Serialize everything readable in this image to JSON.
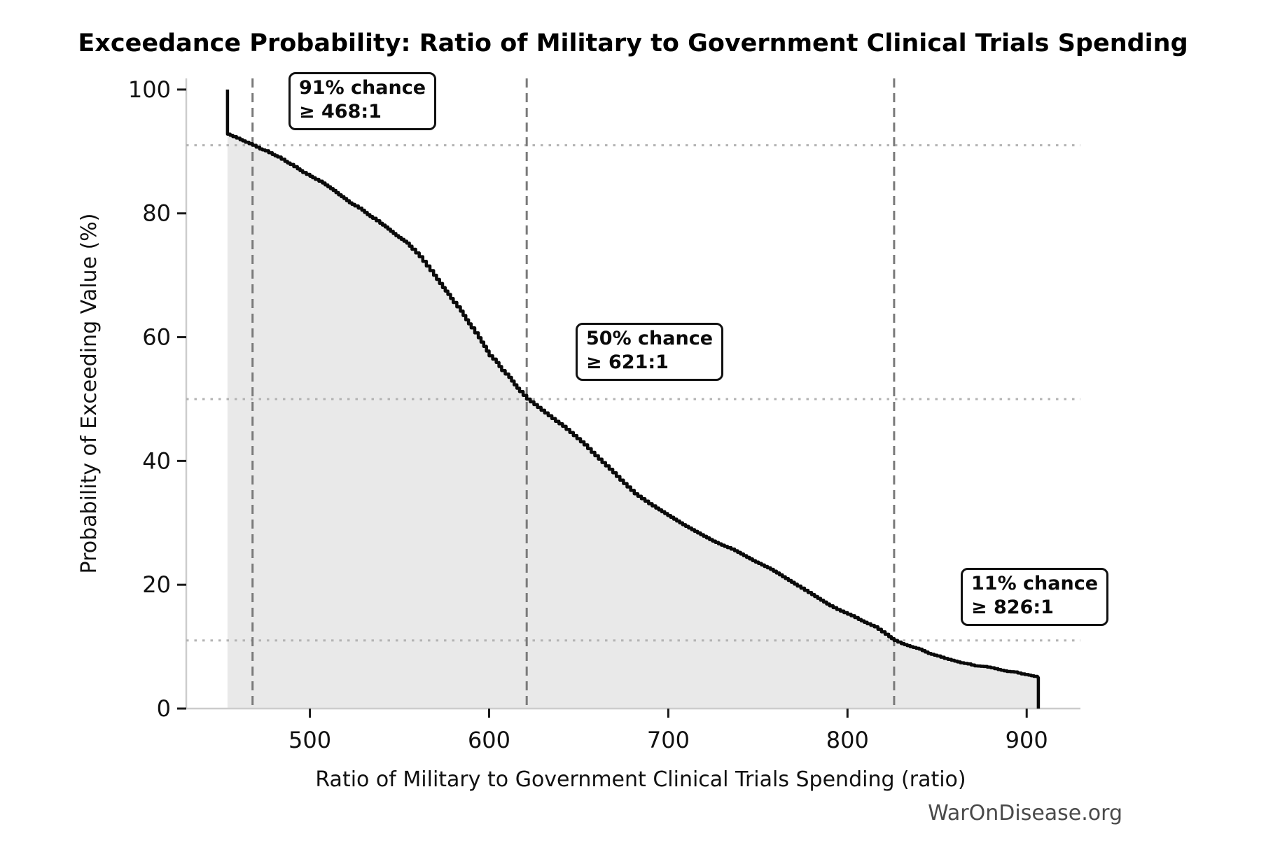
{
  "watermark": "WarOnDisease.org",
  "chart_data": {
    "type": "line",
    "title": "Exceedance Probability: Ratio of Military to Government Clinical Trials Spending",
    "xlabel": "Ratio of Military to Government Clinical Trials Spending (ratio)",
    "ylabel": "Probability of Exceeding Value (%)",
    "xlim": [
      431,
      930
    ],
    "ylim": [
      0,
      101.8
    ],
    "x_ticks": [
      500,
      600,
      700,
      800,
      900
    ],
    "y_ticks": [
      0,
      20,
      40,
      60,
      80,
      100
    ],
    "grid": false,
    "legend_position": "none",
    "fill_under_curve": true,
    "reference_lines": {
      "vertical_dashed_x": [
        468,
        621,
        826
      ],
      "horizontal_dotted_y": [
        91,
        50,
        11
      ]
    },
    "annotations": [
      {
        "label_line1": "91% chance",
        "label_line2": "≥ 468:1",
        "chance_pct": 91,
        "threshold_ratio": 468
      },
      {
        "label_line1": "50% chance",
        "label_line2": "≥ 621:1",
        "chance_pct": 50,
        "threshold_ratio": 621
      },
      {
        "label_line1": "11% chance",
        "label_line2": "≥ 826:1",
        "chance_pct": 11,
        "threshold_ratio": 826
      }
    ],
    "series": [
      {
        "name": "exceedance-curve",
        "points": [
          [
            454,
            100
          ],
          [
            454,
            92.8
          ],
          [
            457,
            92.4
          ],
          [
            461,
            91.9
          ],
          [
            464,
            91.5
          ],
          [
            468,
            91
          ],
          [
            472,
            90.4
          ],
          [
            475,
            90.1
          ],
          [
            479,
            89.5
          ],
          [
            482,
            89.1
          ],
          [
            486,
            88.4
          ],
          [
            489,
            87.9
          ],
          [
            493,
            87.2
          ],
          [
            496,
            86.6
          ],
          [
            500,
            86
          ],
          [
            503,
            85.5
          ],
          [
            507,
            84.9
          ],
          [
            510,
            84.3
          ],
          [
            513,
            83.7
          ],
          [
            516,
            83
          ],
          [
            519,
            82.4
          ],
          [
            522,
            81.7
          ],
          [
            525,
            81.2
          ],
          [
            529,
            80.5
          ],
          [
            532,
            79.8
          ],
          [
            535,
            79.2
          ],
          [
            539,
            78.4
          ],
          [
            542,
            77.8
          ],
          [
            545,
            77.1
          ],
          [
            548,
            76.4
          ],
          [
            551,
            75.8
          ],
          [
            554,
            75.2
          ],
          [
            557,
            74.2
          ],
          [
            561,
            73
          ],
          [
            565,
            71.5
          ],
          [
            569,
            70
          ],
          [
            574,
            68
          ],
          [
            577,
            66.9
          ],
          [
            580,
            65.6
          ],
          [
            584,
            64.2
          ],
          [
            587,
            62.8
          ],
          [
            590,
            61.5
          ],
          [
            594,
            59.9
          ],
          [
            597,
            58.5
          ],
          [
            600,
            57
          ],
          [
            604,
            55.9
          ],
          [
            607,
            54.6
          ],
          [
            611,
            53.5
          ],
          [
            614,
            52.3
          ],
          [
            617,
            51.2
          ],
          [
            621,
            50
          ],
          [
            625,
            49.1
          ],
          [
            629,
            48.2
          ],
          [
            633,
            47.3
          ],
          [
            637,
            46.4
          ],
          [
            641,
            45.6
          ],
          [
            645,
            44.6
          ],
          [
            649,
            43.6
          ],
          [
            653,
            42.6
          ],
          [
            657,
            41.4
          ],
          [
            661,
            40.3
          ],
          [
            665,
            39.2
          ],
          [
            669,
            38.1
          ],
          [
            673,
            36.9
          ],
          [
            677,
            35.8
          ],
          [
            681,
            34.7
          ],
          [
            685,
            33.9
          ],
          [
            689,
            33.1
          ],
          [
            693,
            32.4
          ],
          [
            698,
            31.5
          ],
          [
            703,
            30.6
          ],
          [
            708,
            29.7
          ],
          [
            713,
            28.9
          ],
          [
            718,
            28.1
          ],
          [
            723,
            27.3
          ],
          [
            728,
            26.6
          ],
          [
            733,
            26
          ],
          [
            737,
            25.5
          ],
          [
            742,
            24.7
          ],
          [
            747,
            23.9
          ],
          [
            752,
            23.2
          ],
          [
            757,
            22.5
          ],
          [
            762,
            21.6
          ],
          [
            767,
            20.7
          ],
          [
            772,
            19.8
          ],
          [
            776,
            19.1
          ],
          [
            780,
            18.4
          ],
          [
            785,
            17.5
          ],
          [
            790,
            16.6
          ],
          [
            794,
            16
          ],
          [
            798,
            15.5
          ],
          [
            802,
            15
          ],
          [
            806,
            14.4
          ],
          [
            811,
            13.7
          ],
          [
            815,
            13.2
          ],
          [
            819,
            12.4
          ],
          [
            823,
            11.6
          ],
          [
            826,
            11
          ],
          [
            830,
            10.5
          ],
          [
            835,
            10
          ],
          [
            840,
            9.6
          ],
          [
            845,
            8.9
          ],
          [
            850,
            8.5
          ],
          [
            854,
            8.1
          ],
          [
            858,
            7.8
          ],
          [
            863,
            7.4
          ],
          [
            867,
            7.2
          ],
          [
            871,
            6.9
          ],
          [
            876,
            6.8
          ],
          [
            880,
            6.6
          ],
          [
            884,
            6.3
          ],
          [
            889,
            6
          ],
          [
            893,
            5.9
          ],
          [
            897,
            5.6
          ],
          [
            901,
            5.4
          ],
          [
            904,
            5.2
          ],
          [
            906,
            5.1
          ],
          [
            906.5,
            5
          ],
          [
            906.5,
            0
          ]
        ]
      }
    ],
    "colors": {
      "curve": "#0a0a0a",
      "fill": "#e9e9e9",
      "dashed_line": "#7a7a7a",
      "dotted_line": "#b3b3b3",
      "spine": "#cccccc",
      "tick": "#1a1a1a",
      "tick_label": "#111111",
      "watermark": "#4a4a4a"
    }
  }
}
